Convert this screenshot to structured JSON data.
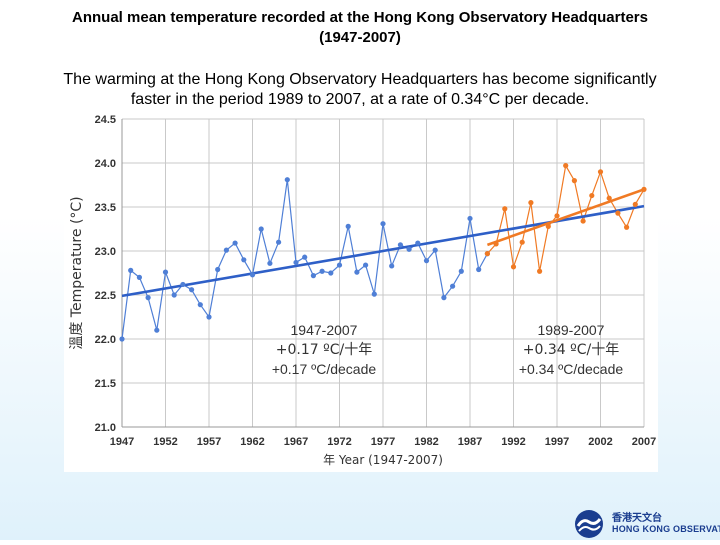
{
  "title_line1": "Annual mean temperature recorded at the Hong Kong Observatory Headquarters",
  "title_line2": "(1947-2007)",
  "subtitle_line1": "The warming at the Hong Kong Observatory Headquarters has become significantly",
  "subtitle_line2": "faster in the period 1989 to 2007, at a rate of 0.34°C per decade.",
  "logo": {
    "cjk": "香港天文台",
    "en": "HONG KONG OBSERVATORY"
  },
  "chart_data": {
    "type": "line",
    "xlabel": "年 Year (1947-2007)",
    "ylabel_cjk": "溫度",
    "ylabel": "Temperature (°C)",
    "xlim": [
      1947,
      2007
    ],
    "ylim": [
      21.0,
      24.5
    ],
    "xticks": [
      1947,
      1952,
      1957,
      1962,
      1967,
      1972,
      1977,
      1982,
      1987,
      1992,
      1997,
      2002,
      2007
    ],
    "yticks": [
      21.0,
      21.5,
      22.0,
      22.5,
      23.0,
      23.5,
      24.0,
      24.5
    ],
    "grid": true,
    "colors": {
      "series1": "#4f7fd6",
      "series2": "#f07a24",
      "trend1": "#2e5fc7",
      "trend2": "#f07a24",
      "grid": "#c9c9c9"
    },
    "series": [
      {
        "x": [
          1947,
          1948,
          1949,
          1950,
          1951,
          1952,
          1953,
          1954,
          1955,
          1956,
          1957,
          1958,
          1959,
          1960,
          1961,
          1962,
          1963,
          1964,
          1965,
          1966,
          1967,
          1968,
          1969,
          1970,
          1971,
          1972,
          1973,
          1974,
          1975,
          1976,
          1977,
          1978,
          1979,
          1980,
          1981,
          1982,
          1983,
          1984,
          1985,
          1986,
          1987,
          1988,
          1989
        ],
        "values": [
          22.0,
          22.78,
          22.7,
          22.47,
          22.1,
          22.76,
          22.5,
          22.62,
          22.56,
          22.39,
          22.25,
          22.79,
          23.01,
          23.09,
          22.9,
          22.73,
          23.25,
          22.86,
          23.1,
          23.81,
          22.87,
          22.93,
          22.72,
          22.77,
          22.75,
          22.84,
          23.28,
          22.76,
          22.84,
          22.51,
          23.31,
          22.83,
          23.07,
          23.02,
          23.09,
          22.89,
          23.01,
          22.47,
          22.6,
          22.77,
          23.37,
          22.79,
          22.97
        ]
      },
      {
        "x": [
          1989,
          1990,
          1991,
          1992,
          1993,
          1994,
          1995,
          1996,
          1997,
          1998,
          1999,
          2000,
          2001,
          2002,
          2003,
          2004,
          2005,
          2006,
          2007
        ],
        "values": [
          22.97,
          23.08,
          23.48,
          22.82,
          23.1,
          23.55,
          22.77,
          23.28,
          23.4,
          23.97,
          23.8,
          23.34,
          23.63,
          23.9,
          23.6,
          23.43,
          23.27,
          23.53,
          23.7
        ]
      }
    ],
    "trends": [
      {
        "x": [
          1947,
          2007
        ],
        "values": [
          22.49,
          23.51
        ]
      },
      {
        "x": [
          1989,
          2007
        ],
        "values": [
          23.07,
          23.7
        ]
      }
    ],
    "annotations": [
      {
        "period": "1947-2007",
        "rate_cjk": "+0.17 ºC/十年",
        "rate_en": "+0.17 ºC/decade"
      },
      {
        "period": "1989-2007",
        "rate_cjk": "+0.34 ºC/十年",
        "rate_en": "+0.34 ºC/decade"
      }
    ]
  }
}
